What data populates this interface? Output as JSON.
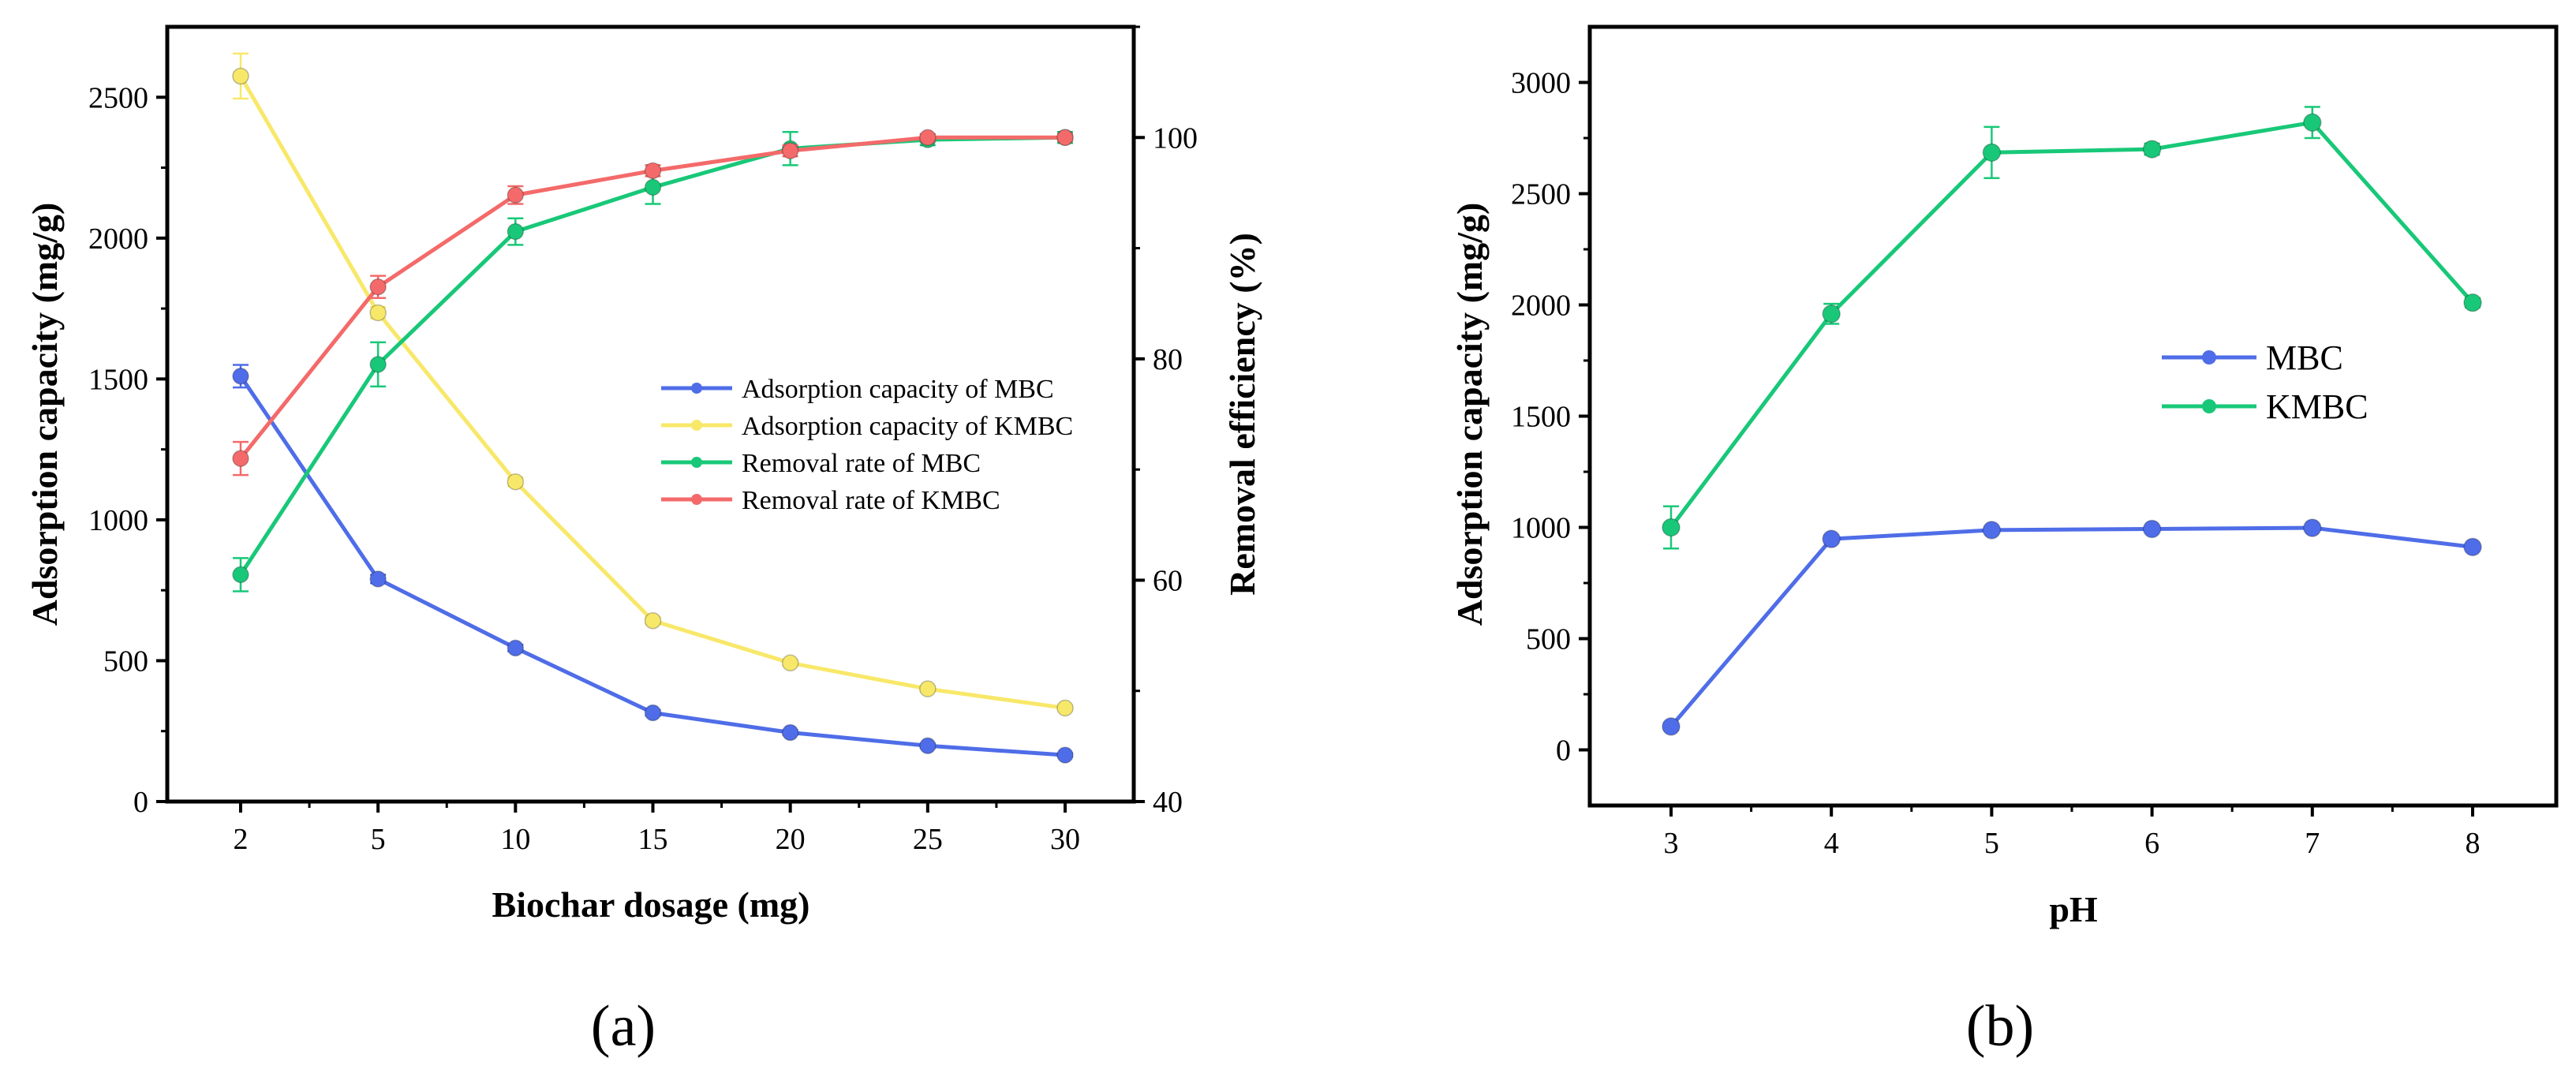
{
  "colors": {
    "blue": "#4f6de8",
    "yellow": "#f8e86a",
    "green": "#18c878",
    "red": "#f46a6a",
    "axis": "#000000"
  },
  "chart_data": [
    {
      "type": "line",
      "panel_label": "(a)",
      "xlabel": "Biochar dosage (mg)",
      "ylabel": "Adsorption capacity (mg/g)",
      "y2label": "Removal efficiency (%)",
      "categories": [
        "2",
        "5",
        "10",
        "15",
        "20",
        "25",
        "30"
      ],
      "ylim": [
        0,
        2750
      ],
      "yticks": [
        0,
        500,
        1000,
        1500,
        2000,
        2500
      ],
      "y2lim": [
        40,
        110
      ],
      "y2ticks": [
        40,
        60,
        80,
        100
      ],
      "legend_position": "center-right",
      "series": [
        {
          "name": "Adsorption capacity of MBC",
          "axis": "left",
          "color": "#4f6de8",
          "values": [
            1510,
            790,
            545,
            315,
            245,
            198,
            165
          ],
          "errors": [
            40,
            15,
            12,
            10,
            8,
            8,
            6
          ]
        },
        {
          "name": "Adsorption capacity of KMBC",
          "axis": "left",
          "color": "#f8e86a",
          "values": [
            2575,
            1735,
            1135,
            642,
            492,
            400,
            332
          ],
          "errors": [
            80,
            20,
            15,
            12,
            10,
            8,
            8
          ]
        },
        {
          "name": "Removal rate of MBC",
          "axis": "right",
          "color": "#18c878",
          "values": [
            60.5,
            79.5,
            91.5,
            95.5,
            99.0,
            99.8,
            100.0
          ],
          "errors": [
            1.5,
            2.0,
            1.2,
            1.5,
            1.5,
            0.5,
            0.5
          ]
        },
        {
          "name": "Removal rate of KMBC",
          "axis": "right",
          "color": "#f46a6a",
          "values": [
            71.0,
            86.5,
            94.8,
            97.0,
            98.8,
            100.0,
            100.0
          ],
          "errors": [
            1.5,
            1.0,
            0.8,
            0.5,
            0.5,
            0.3,
            0.3
          ]
        }
      ]
    },
    {
      "type": "line",
      "panel_label": "(b)",
      "xlabel": "pH",
      "ylabel": "Adsorption capacity (mg/g)",
      "categories": [
        "3",
        "4",
        "5",
        "6",
        "7",
        "8"
      ],
      "ylim": [
        -250,
        3250
      ],
      "yticks": [
        0,
        500,
        1000,
        1500,
        2000,
        2500,
        3000
      ],
      "legend_position": "center-right",
      "series": [
        {
          "name": "MBC",
          "color": "#4f6de8",
          "values": [
            105,
            948,
            988,
            993,
            998,
            912
          ],
          "errors": [
            15,
            15,
            10,
            10,
            10,
            10
          ]
        },
        {
          "name": "KMBC",
          "color": "#18c878",
          "values": [
            1000,
            1960,
            2685,
            2700,
            2820,
            2010
          ],
          "errors": [
            95,
            45,
            115,
            25,
            70,
            20
          ]
        }
      ]
    }
  ]
}
